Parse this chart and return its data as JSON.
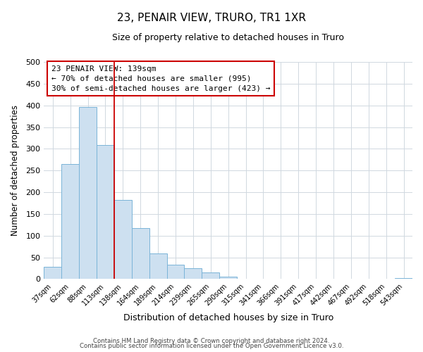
{
  "title": "23, PENAIR VIEW, TRURO, TR1 1XR",
  "subtitle": "Size of property relative to detached houses in Truro",
  "xlabel": "Distribution of detached houses by size in Truro",
  "ylabel": "Number of detached properties",
  "bin_labels": [
    "37sqm",
    "62sqm",
    "88sqm",
    "113sqm",
    "138sqm",
    "164sqm",
    "189sqm",
    "214sqm",
    "239sqm",
    "265sqm",
    "290sqm",
    "315sqm",
    "341sqm",
    "366sqm",
    "391sqm",
    "417sqm",
    "442sqm",
    "467sqm",
    "492sqm",
    "518sqm",
    "543sqm"
  ],
  "bar_heights": [
    29,
    265,
    396,
    309,
    183,
    117,
    59,
    33,
    25,
    15,
    6,
    0,
    0,
    0,
    0,
    0,
    0,
    0,
    0,
    0,
    2
  ],
  "bar_color": "#cde0f0",
  "bar_edgecolor": "#7ab4d8",
  "highlight_bin_index": 4,
  "highlight_line_color": "#cc0000",
  "annotation_line1": "23 PENAIR VIEW: 139sqm",
  "annotation_line2": "← 70% of detached houses are smaller (995)",
  "annotation_line3": "30% of semi-detached houses are larger (423) →",
  "annotation_box_edgecolor": "#cc0000",
  "ylim": [
    0,
    500
  ],
  "yticks": [
    0,
    50,
    100,
    150,
    200,
    250,
    300,
    350,
    400,
    450,
    500
  ],
  "footer_line1": "Contains HM Land Registry data © Crown copyright and database right 2024.",
  "footer_line2": "Contains public sector information licensed under the Open Government Licence v3.0.",
  "background_color": "#ffffff",
  "grid_color": "#d0d8e0"
}
